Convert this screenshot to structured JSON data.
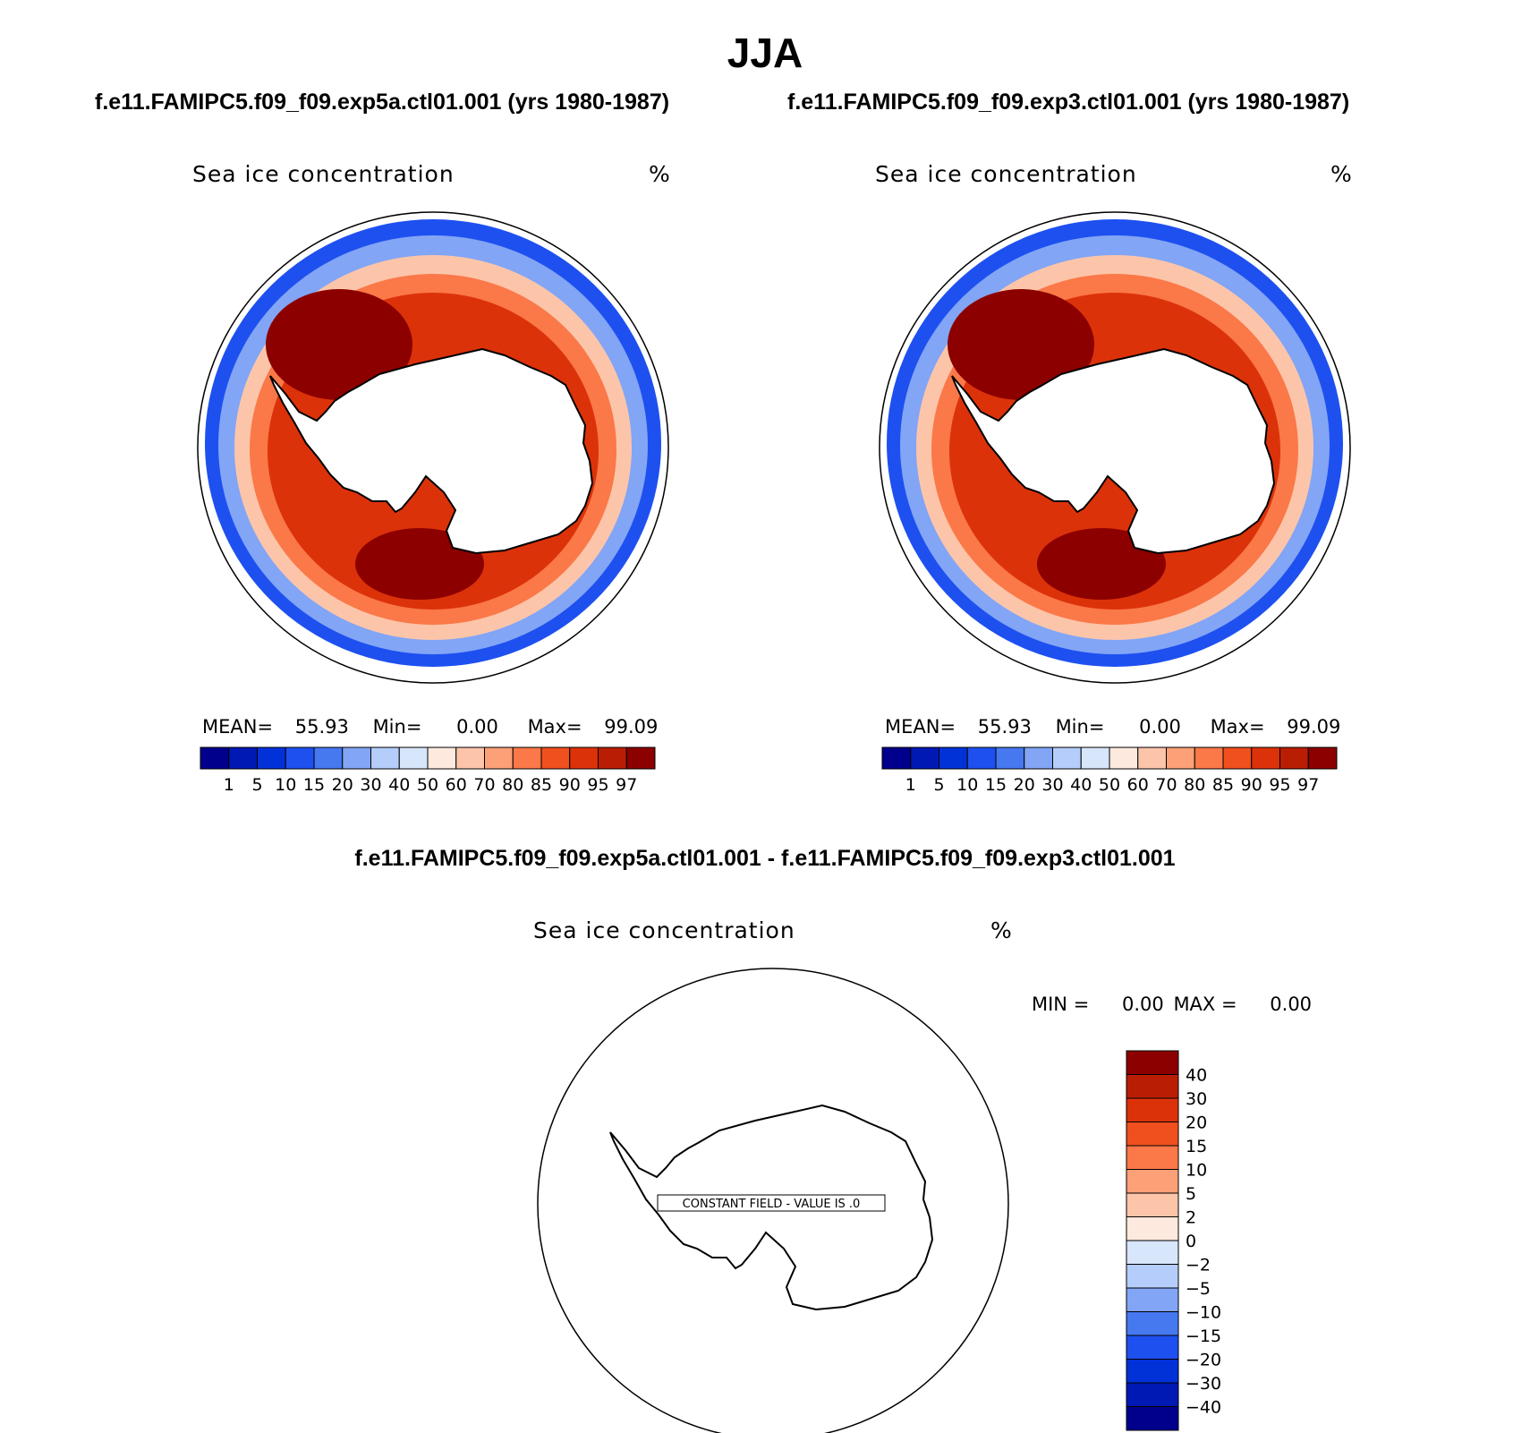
{
  "title": "JJA",
  "panels": [
    {
      "case_title": "f.e11.FAMIPC5.f09_f09.exp5a.ctl01.001 (yrs 1980-1987)",
      "variable": "Sea ice concentration",
      "units": "%",
      "stats": {
        "mean_label": "MEAN=",
        "mean": "55.93",
        "min_label": "Min=",
        "min": "0.00",
        "max_label": "Max=",
        "max": "99.09"
      }
    },
    {
      "case_title": "f.e11.FAMIPC5.f09_f09.exp3.ctl01.001 (yrs 1980-1987)",
      "variable": "Sea ice concentration",
      "units": "%",
      "stats": {
        "mean_label": "MEAN=",
        "mean": "55.93",
        "min_label": "Min=",
        "min": "0.00",
        "max_label": "Max=",
        "max": "99.09"
      }
    }
  ],
  "colorbar_main": {
    "colors": [
      "#00008c",
      "#0019b4",
      "#0032d8",
      "#1e50f0",
      "#4678f0",
      "#82a5f5",
      "#b4cdfa",
      "#d7e6fa",
      "#fde9dd",
      "#fcc5aa",
      "#fca078",
      "#fb7848",
      "#f0501e",
      "#dc320a",
      "#b91e05",
      "#8c0000"
    ],
    "labels": [
      "1",
      "5",
      "10",
      "15",
      "20",
      "30",
      "40",
      "50",
      "60",
      "70",
      "80",
      "85",
      "90",
      "95",
      "97"
    ]
  },
  "diff_panel": {
    "title": "f.e11.FAMIPC5.f09_f09.exp5a.ctl01.001 - f.e11.FAMIPC5.f09_f09.exp3.ctl01.001",
    "variable": "Sea ice concentration",
    "units": "%",
    "min_label": "MIN =",
    "min": "0.00",
    "max_label": "MAX =",
    "max": "0.00",
    "constant_field": "CONSTANT FIELD - VALUE IS .0"
  },
  "colorbar_diff": {
    "colors": [
      "#8c0000",
      "#b91e05",
      "#dc320a",
      "#f0501e",
      "#fb7848",
      "#fca078",
      "#fcc5aa",
      "#fde9dd",
      "#d7e6fa",
      "#b4cdfa",
      "#82a5f5",
      "#4678f0",
      "#1e50f0",
      "#0032d8",
      "#0019b4",
      "#00008c"
    ],
    "labels": [
      "40",
      "30",
      "20",
      "15",
      "10",
      "5",
      "2",
      "0",
      "−2",
      "−5",
      "−10",
      "−15",
      "−20",
      "−30",
      "−40"
    ]
  },
  "ice_colors": {
    "c1": "#1e50f0",
    "c2": "#82a5f5",
    "c3": "#fcc5aa",
    "c4": "#fb7848",
    "c5": "#dc320a",
    "c6": "#8c0000"
  }
}
